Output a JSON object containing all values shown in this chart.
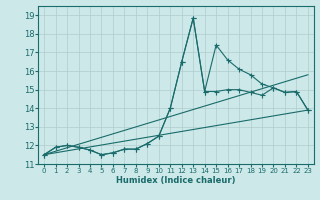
{
  "xlabel": "Humidex (Indice chaleur)",
  "bg_color": "#cce8e8",
  "grid_color": "#b0cccc",
  "line_color": "#1a6b6b",
  "xlim": [
    -0.5,
    23.5
  ],
  "ylim": [
    11,
    19.5
  ],
  "yticks": [
    11,
    12,
    13,
    14,
    15,
    16,
    17,
    18,
    19
  ],
  "xticks": [
    0,
    1,
    2,
    3,
    4,
    5,
    6,
    7,
    8,
    9,
    10,
    11,
    12,
    13,
    14,
    15,
    16,
    17,
    18,
    19,
    20,
    21,
    22,
    23
  ],
  "series1_x": [
    0,
    1,
    2,
    3,
    4,
    5,
    6,
    7,
    8,
    9,
    10,
    11,
    12,
    13,
    14,
    15,
    16,
    17,
    18,
    19,
    20,
    21,
    22,
    23
  ],
  "series1_y": [
    11.5,
    11.9,
    12.0,
    11.9,
    11.75,
    11.5,
    11.6,
    11.8,
    11.8,
    12.1,
    12.5,
    14.0,
    16.5,
    18.85,
    14.9,
    14.9,
    15.0,
    15.0,
    14.85,
    14.7,
    15.1,
    14.85,
    14.9,
    13.9
  ],
  "series2_x": [
    0,
    1,
    2,
    3,
    4,
    5,
    6,
    7,
    8,
    9,
    10,
    11,
    12,
    13,
    14,
    15,
    16,
    17,
    18,
    19,
    20,
    21,
    22,
    23
  ],
  "series2_y": [
    11.5,
    11.9,
    12.0,
    11.9,
    11.75,
    11.5,
    11.6,
    11.8,
    11.8,
    12.1,
    12.5,
    14.0,
    16.5,
    18.85,
    14.9,
    17.4,
    16.6,
    16.1,
    15.8,
    15.3,
    15.1,
    14.85,
    14.9,
    13.9
  ],
  "trend1_x": [
    0,
    23
  ],
  "trend1_y": [
    11.5,
    13.9
  ],
  "trend2_x": [
    0,
    23
  ],
  "trend2_y": [
    11.5,
    15.8
  ]
}
